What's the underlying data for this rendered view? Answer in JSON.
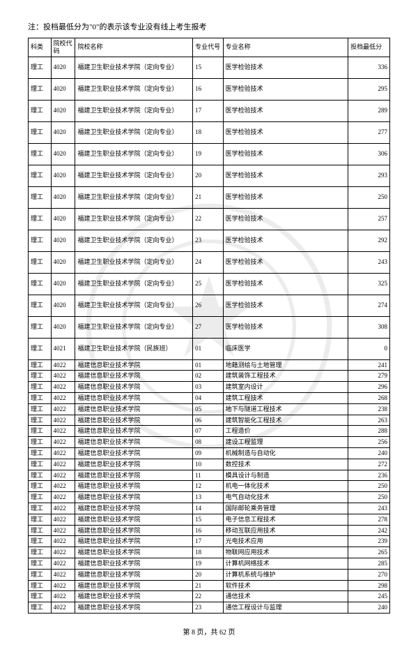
{
  "note": "注：投档最低分为\"0\"的表示该专业没有线上考生报考",
  "footer": "第 8 页，共 62 页",
  "headers": {
    "col1": "科类",
    "col2": "院校代码",
    "col3": "院校名称",
    "col4": "专业代号",
    "col5": "专业名称",
    "col6": "投档最低分"
  },
  "tallRows": [
    {
      "c1": "理工",
      "c2": "4020",
      "c3": "福建卫生职业技术学院（定向专业）",
      "c4": "15",
      "c5": "医学检验技术",
      "c6": "336"
    },
    {
      "c1": "理工",
      "c2": "4020",
      "c3": "福建卫生职业技术学院（定向专业）",
      "c4": "16",
      "c5": "医学检验技术",
      "c6": "295"
    },
    {
      "c1": "理工",
      "c2": "4020",
      "c3": "福建卫生职业技术学院（定向专业）",
      "c4": "17",
      "c5": "医学检验技术",
      "c6": "289"
    },
    {
      "c1": "理工",
      "c2": "4020",
      "c3": "福建卫生职业技术学院（定向专业）",
      "c4": "18",
      "c5": "医学检验技术",
      "c6": "277"
    },
    {
      "c1": "理工",
      "c2": "4020",
      "c3": "福建卫生职业技术学院（定向专业）",
      "c4": "19",
      "c5": "医学检验技术",
      "c6": "306"
    },
    {
      "c1": "理工",
      "c2": "4020",
      "c3": "福建卫生职业技术学院（定向专业）",
      "c4": "20",
      "c5": "医学检验技术",
      "c6": "293"
    },
    {
      "c1": "理工",
      "c2": "4020",
      "c3": "福建卫生职业技术学院（定向专业）",
      "c4": "21",
      "c5": "医学检验技术",
      "c6": "250"
    },
    {
      "c1": "理工",
      "c2": "4020",
      "c3": "福建卫生职业技术学院（定向专业）",
      "c4": "22",
      "c5": "医学检验技术",
      "c6": "257"
    },
    {
      "c1": "理工",
      "c2": "4020",
      "c3": "福建卫生职业技术学院（定向专业）",
      "c4": "23",
      "c5": "医学检验技术",
      "c6": "292"
    },
    {
      "c1": "理工",
      "c2": "4020",
      "c3": "福建卫生职业技术学院（定向专业）",
      "c4": "24",
      "c5": "医学检验技术",
      "c6": "243"
    },
    {
      "c1": "理工",
      "c2": "4020",
      "c3": "福建卫生职业技术学院（定向专业）",
      "c4": "25",
      "c5": "医学检验技术",
      "c6": "325"
    },
    {
      "c1": "理工",
      "c2": "4020",
      "c3": "福建卫生职业技术学院（定向专业）",
      "c4": "26",
      "c5": "医学检验技术",
      "c6": "274"
    },
    {
      "c1": "理工",
      "c2": "4020",
      "c3": "福建卫生职业技术学院（定向专业）",
      "c4": "27",
      "c5": "医学检验技术",
      "c6": "308"
    },
    {
      "c1": "理工",
      "c2": "4021",
      "c3": "福建卫生职业技术学院（民族班）",
      "c4": "01",
      "c5": "临床医学",
      "c6": "0"
    }
  ],
  "shortRows": [
    {
      "c1": "理工",
      "c2": "4022",
      "c3": "福建信息职业技术学院",
      "c4": "01",
      "c5": "地籍测绘与土地管理",
      "c6": "241"
    },
    {
      "c1": "理工",
      "c2": "4022",
      "c3": "福建信息职业技术学院",
      "c4": "02",
      "c5": "建筑装饰工程技术",
      "c6": "279"
    },
    {
      "c1": "理工",
      "c2": "4022",
      "c3": "福建信息职业技术学院",
      "c4": "03",
      "c5": "建筑室内设计",
      "c6": "296"
    },
    {
      "c1": "理工",
      "c2": "4022",
      "c3": "福建信息职业技术学院",
      "c4": "04",
      "c5": "建筑工程技术",
      "c6": "268"
    },
    {
      "c1": "理工",
      "c2": "4022",
      "c3": "福建信息职业技术学院",
      "c4": "05",
      "c5": "地下与隧道工程技术",
      "c6": "238"
    },
    {
      "c1": "理工",
      "c2": "4022",
      "c3": "福建信息职业技术学院",
      "c4": "06",
      "c5": "建筑智能化工程技术",
      "c6": "263"
    },
    {
      "c1": "理工",
      "c2": "4022",
      "c3": "福建信息职业技术学院",
      "c4": "07",
      "c5": "工程造价",
      "c6": "288"
    },
    {
      "c1": "理工",
      "c2": "4022",
      "c3": "福建信息职业技术学院",
      "c4": "08",
      "c5": "建设工程监理",
      "c6": "256"
    },
    {
      "c1": "理工",
      "c2": "4022",
      "c3": "福建信息职业技术学院",
      "c4": "09",
      "c5": "机械制造与自动化",
      "c6": "240"
    },
    {
      "c1": "理工",
      "c2": "4022",
      "c3": "福建信息职业技术学院",
      "c4": "10",
      "c5": "数控技术",
      "c6": "272"
    },
    {
      "c1": "理工",
      "c2": "4022",
      "c3": "福建信息职业技术学院",
      "c4": "11",
      "c5": "模具设计与制造",
      "c6": "236"
    },
    {
      "c1": "理工",
      "c2": "4022",
      "c3": "福建信息职业技术学院",
      "c4": "12",
      "c5": "机电一体化技术",
      "c6": "250"
    },
    {
      "c1": "理工",
      "c2": "4022",
      "c3": "福建信息职业技术学院",
      "c4": "13",
      "c5": "电气自动化技术",
      "c6": "250"
    },
    {
      "c1": "理工",
      "c2": "4022",
      "c3": "福建信息职业技术学院",
      "c4": "14",
      "c5": "国际邮轮乘务管理",
      "c6": "243"
    },
    {
      "c1": "理工",
      "c2": "4022",
      "c3": "福建信息职业技术学院",
      "c4": "15",
      "c5": "电子信息工程技术",
      "c6": "278"
    },
    {
      "c1": "理工",
      "c2": "4022",
      "c3": "福建信息职业技术学院",
      "c4": "16",
      "c5": "移动互联应用技术",
      "c6": "242"
    },
    {
      "c1": "理工",
      "c2": "4022",
      "c3": "福建信息职业技术学院",
      "c4": "17",
      "c5": "光电技术应用",
      "c6": "239"
    },
    {
      "c1": "理工",
      "c2": "4022",
      "c3": "福建信息职业技术学院",
      "c4": "18",
      "c5": "物联网应用技术",
      "c6": "265"
    },
    {
      "c1": "理工",
      "c2": "4022",
      "c3": "福建信息职业技术学院",
      "c4": "19",
      "c5": "计算机网络技术",
      "c6": "285"
    },
    {
      "c1": "理工",
      "c2": "4022",
      "c3": "福建信息职业技术学院",
      "c4": "20",
      "c5": "计算机系统与维护",
      "c6": "270"
    },
    {
      "c1": "理工",
      "c2": "4022",
      "c3": "福建信息职业技术学院",
      "c4": "21",
      "c5": "软件技术",
      "c6": "298"
    },
    {
      "c1": "理工",
      "c2": "4022",
      "c3": "福建信息职业技术学院",
      "c4": "22",
      "c5": "通信技术",
      "c6": "245"
    },
    {
      "c1": "理工",
      "c2": "4022",
      "c3": "福建信息职业技术学院",
      "c4": "23",
      "c5": "通信工程设计与监理",
      "c6": "240"
    }
  ]
}
